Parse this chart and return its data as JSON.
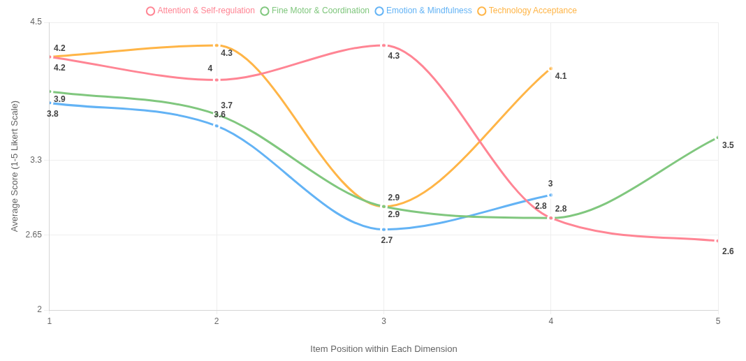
{
  "chart_data": {
    "type": "line",
    "xlabel": "Item Position within Each Dimension",
    "ylabel": "Average Score (1-5 Likert Scale)",
    "x": [
      1,
      2,
      3,
      4,
      5
    ],
    "xlim": [
      1,
      5
    ],
    "xticks": [
      1,
      2,
      3,
      4,
      5
    ],
    "ylim": [
      2,
      4.5
    ],
    "yticks": [
      2,
      2.65,
      3.3,
      4.5
    ],
    "series": [
      {
        "name": "Attention & Self-regulation",
        "color": "#ff8594",
        "values": [
          4.2,
          4,
          4.3,
          2.8,
          2.6
        ]
      },
      {
        "name": "Fine Motor & Coordination",
        "color": "#80c77e",
        "values": [
          3.9,
          3.7,
          2.9,
          2.8,
          3.5
        ]
      },
      {
        "name": "Emotion & Mindfulness",
        "color": "#63b3f5",
        "values": [
          3.8,
          3.6,
          2.7,
          3,
          null
        ]
      },
      {
        "name": "Technology Acceptance",
        "color": "#ffb547",
        "values": [
          4.2,
          4.3,
          2.9,
          4.1,
          null
        ]
      }
    ],
    "data_labels": true,
    "grid": true,
    "legend": "top",
    "marker": "circle",
    "line_style": "solid"
  }
}
